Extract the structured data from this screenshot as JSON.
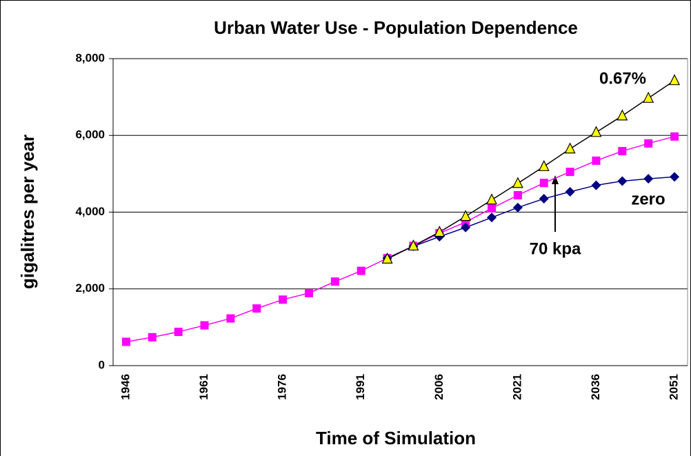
{
  "chart_data": {
    "type": "line",
    "title": "Urban Water Use - Population Dependence",
    "xlabel": "Time of Simulation",
    "ylabel": "gigalitres per year",
    "categories": [
      "1946",
      null,
      null,
      "1961",
      null,
      null,
      "1976",
      null,
      null,
      "1991",
      null,
      null,
      "2006",
      null,
      null,
      "2021",
      null,
      null,
      "2036",
      null,
      null,
      "2051"
    ],
    "series": [
      {
        "name": "70 kpa",
        "color": "#ff00ff",
        "line_color": "#ff00ff",
        "marker": "square",
        "values": [
          620,
          740,
          880,
          1050,
          1230,
          1490,
          1720,
          1890,
          2190,
          2470,
          2800,
          3120,
          3450,
          3740,
          4100,
          4440,
          4760,
          5050,
          5340,
          5590,
          5790,
          5970
        ]
      },
      {
        "name": "zero",
        "color": "#000080",
        "line_color": "#000080",
        "marker": "diamond",
        "values": [
          null,
          null,
          null,
          null,
          null,
          null,
          null,
          null,
          null,
          null,
          2800,
          3110,
          3360,
          3600,
          3860,
          4120,
          4350,
          4530,
          4700,
          4810,
          4870,
          4920
        ]
      },
      {
        "name": "0.67%",
        "color": "#ffff00",
        "line_color": "#000000",
        "marker": "triangle",
        "values": [
          null,
          null,
          null,
          null,
          null,
          null,
          null,
          null,
          null,
          null,
          2780,
          3120,
          3480,
          3890,
          4320,
          4750,
          5190,
          5650,
          6080,
          6510,
          6970,
          7430
        ]
      }
    ],
    "ylim": [
      0,
      8000
    ],
    "yticks": [
      0,
      {
        "value": 2000,
        "label": "2,000"
      },
      {
        "value": 4000,
        "label": "4,000"
      },
      {
        "value": 6000,
        "label": "6,000"
      },
      {
        "value": 8000,
        "label": "8,000"
      }
    ],
    "grid": true
  }
}
